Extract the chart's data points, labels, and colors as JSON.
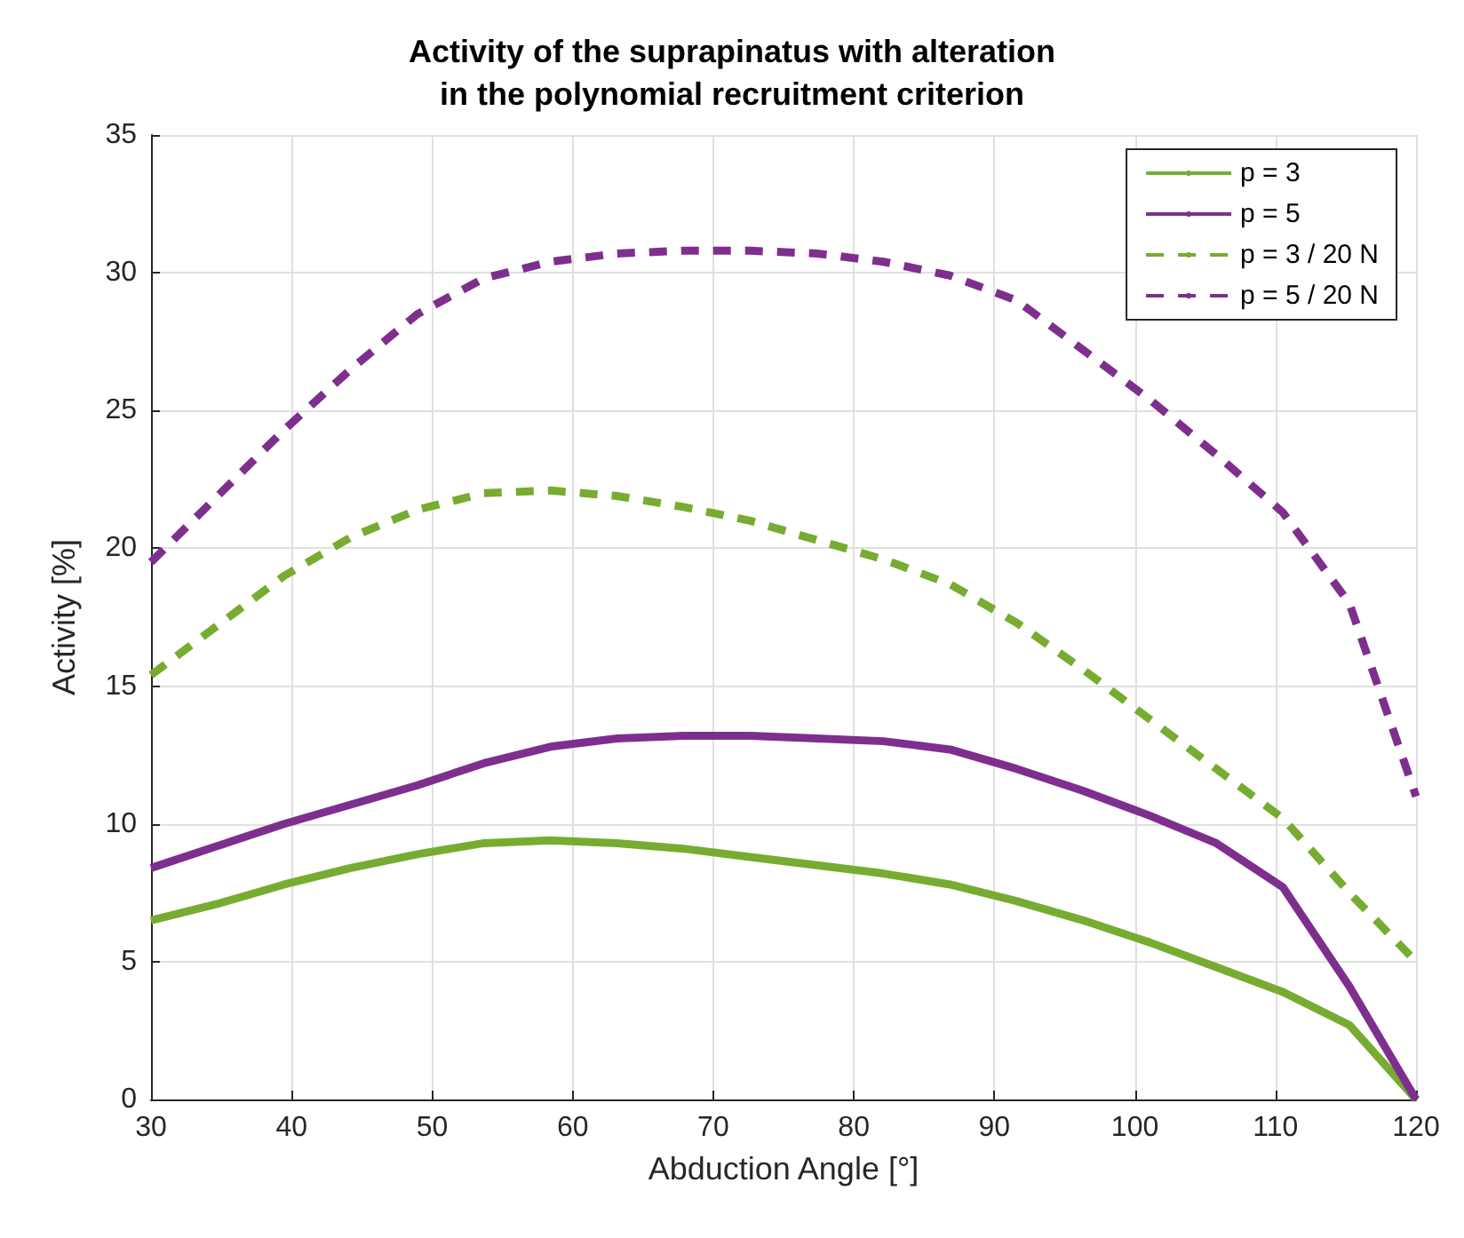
{
  "chart_data": {
    "type": "line",
    "title": "Activity of the suprapinatus with alteration\nin the polynomial recruitment criterion",
    "xlabel": "Abduction Angle [°]",
    "ylabel": "Activity [%]",
    "x": [
      30,
      34.74,
      39.47,
      44.21,
      48.95,
      53.68,
      58.42,
      63.16,
      67.89,
      72.63,
      77.37,
      82.11,
      86.84,
      91.58,
      96.32,
      101.05,
      105.79,
      110.53,
      115.26,
      120
    ],
    "series": [
      {
        "name": "p = 3",
        "color": "#77ac30",
        "line_style": "solid",
        "values": [
          6.5,
          7.1,
          7.8,
          8.4,
          8.9,
          9.3,
          9.4,
          9.3,
          9.1,
          8.8,
          8.5,
          8.2,
          7.8,
          7.2,
          6.5,
          5.7,
          4.8,
          3.9,
          2.7,
          0
        ]
      },
      {
        "name": "p = 5",
        "color": "#7e2f8e",
        "line_style": "solid",
        "values": [
          8.4,
          9.2,
          10.0,
          10.7,
          11.4,
          12.2,
          12.8,
          13.1,
          13.2,
          13.2,
          13.1,
          13.0,
          12.7,
          12.0,
          11.2,
          10.3,
          9.3,
          7.7,
          4.1,
          0
        ]
      },
      {
        "name": "p = 3 / 20 N",
        "color": "#77ac30",
        "line_style": "dashed",
        "values": [
          15.4,
          17.2,
          19.0,
          20.4,
          21.4,
          22.0,
          22.1,
          21.9,
          21.5,
          21.0,
          20.3,
          19.6,
          18.7,
          17.3,
          15.6,
          13.8,
          12.0,
          10.2,
          7.5,
          5.0
        ]
      },
      {
        "name": "p = 5 / 20 N",
        "color": "#7e2f8e",
        "line_style": "dashed",
        "values": [
          19.5,
          21.9,
          24.3,
          26.5,
          28.5,
          29.8,
          30.4,
          30.7,
          30.8,
          30.8,
          30.7,
          30.4,
          29.9,
          29.0,
          27.2,
          25.4,
          23.4,
          21.3,
          18.0,
          11.0
        ]
      }
    ],
    "xlim": [
      30,
      120
    ],
    "xticks": [
      30,
      40,
      50,
      60,
      70,
      80,
      90,
      100,
      110,
      120
    ],
    "ylim": [
      0,
      35
    ],
    "yticks": [
      0,
      5,
      10,
      15,
      20,
      25,
      30,
      35
    ],
    "grid": true,
    "legend": "top right",
    "marker": "none"
  }
}
